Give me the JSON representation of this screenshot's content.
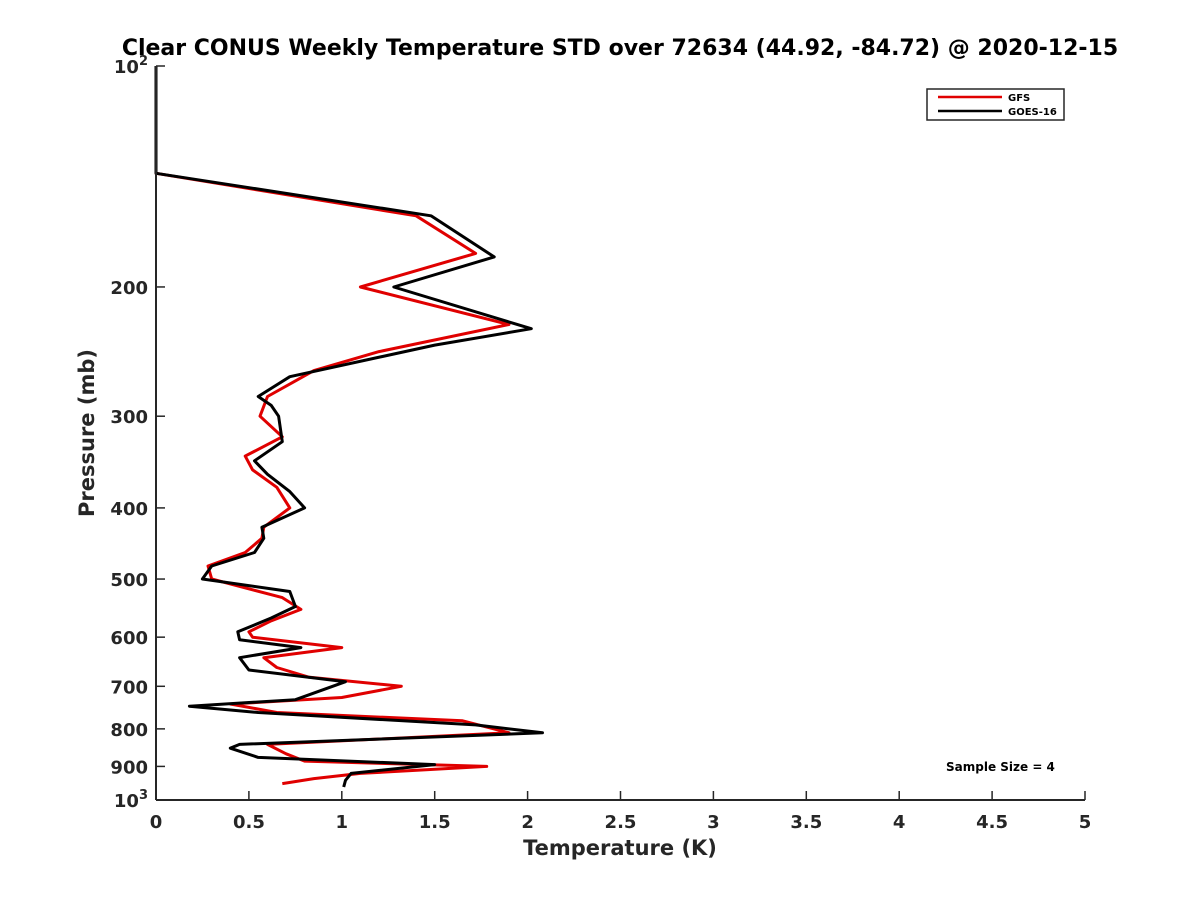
{
  "chart_data": {
    "type": "line",
    "title": "Clear CONUS Weekly Temperature STD over 72634 (44.92, -84.72) @ 2020-12-15",
    "xlabel": "Temperature (K)",
    "ylabel": "Pressure (mb)",
    "xlim": [
      0,
      5
    ],
    "ylim": [
      100,
      1000
    ],
    "y_scale": "log",
    "y_reversed": true,
    "grid": false,
    "legend_position": "top-right",
    "x_ticks": [
      "0",
      "0.5",
      "1",
      "1.5",
      "2",
      "2.5",
      "3",
      "3.5",
      "4",
      "4.5",
      "5"
    ],
    "y_ticks": [
      {
        "value": 100,
        "base": "10",
        "exp": "2"
      },
      {
        "value": 200,
        "label": "200"
      },
      {
        "value": 300,
        "label": "300"
      },
      {
        "value": 400,
        "label": "400"
      },
      {
        "value": 500,
        "label": "500"
      },
      {
        "value": 600,
        "label": "600"
      },
      {
        "value": 700,
        "label": "700"
      },
      {
        "value": 800,
        "label": "800"
      },
      {
        "value": 900,
        "label": "900"
      },
      {
        "value": 1000,
        "base": "10",
        "exp": "3"
      }
    ],
    "annotation": "Sample Size = 4",
    "series": [
      {
        "name": "GFS",
        "color": "#e00000",
        "points": [
          [
            0.0,
            100
          ],
          [
            0.0,
            140
          ],
          [
            1.4,
            160
          ],
          [
            1.72,
            180
          ],
          [
            1.1,
            200
          ],
          [
            1.9,
            225
          ],
          [
            1.2,
            245
          ],
          [
            0.85,
            260
          ],
          [
            0.6,
            282
          ],
          [
            0.56,
            300
          ],
          [
            0.68,
            320
          ],
          [
            0.48,
            340
          ],
          [
            0.52,
            355
          ],
          [
            0.65,
            375
          ],
          [
            0.72,
            400
          ],
          [
            0.58,
            425
          ],
          [
            0.57,
            440
          ],
          [
            0.48,
            460
          ],
          [
            0.28,
            480
          ],
          [
            0.3,
            500
          ],
          [
            0.68,
            530
          ],
          [
            0.78,
            550
          ],
          [
            0.62,
            570
          ],
          [
            0.5,
            590
          ],
          [
            0.52,
            600
          ],
          [
            1.0,
            620
          ],
          [
            0.58,
            640
          ],
          [
            0.65,
            660
          ],
          [
            0.82,
            680
          ],
          [
            1.32,
            700
          ],
          [
            1.0,
            725
          ],
          [
            0.4,
            740
          ],
          [
            0.65,
            760
          ],
          [
            1.65,
            780
          ],
          [
            1.9,
            810
          ],
          [
            0.6,
            840
          ],
          [
            0.7,
            865
          ],
          [
            0.8,
            885
          ],
          [
            1.78,
            900
          ],
          [
            1.1,
            920
          ],
          [
            0.85,
            935
          ],
          [
            0.68,
            950
          ]
        ]
      },
      {
        "name": "GOES-16",
        "color": "#000000",
        "points": [
          [
            0.0,
            100
          ],
          [
            0.0,
            140
          ],
          [
            1.48,
            160
          ],
          [
            1.82,
            182
          ],
          [
            1.28,
            200
          ],
          [
            2.02,
            228
          ],
          [
            1.5,
            240
          ],
          [
            0.72,
            265
          ],
          [
            0.55,
            282
          ],
          [
            0.62,
            290
          ],
          [
            0.66,
            300
          ],
          [
            0.68,
            325
          ],
          [
            0.53,
            345
          ],
          [
            0.6,
            360
          ],
          [
            0.72,
            380
          ],
          [
            0.8,
            400
          ],
          [
            0.57,
            425
          ],
          [
            0.58,
            440
          ],
          [
            0.53,
            460
          ],
          [
            0.3,
            480
          ],
          [
            0.25,
            500
          ],
          [
            0.72,
            520
          ],
          [
            0.75,
            545
          ],
          [
            0.62,
            565
          ],
          [
            0.44,
            590
          ],
          [
            0.45,
            605
          ],
          [
            0.78,
            620
          ],
          [
            0.45,
            640
          ],
          [
            0.5,
            665
          ],
          [
            1.02,
            690
          ],
          [
            0.75,
            730
          ],
          [
            0.18,
            745
          ],
          [
            0.55,
            760
          ],
          [
            1.72,
            790
          ],
          [
            2.08,
            810
          ],
          [
            0.45,
            840
          ],
          [
            0.4,
            850
          ],
          [
            0.55,
            875
          ],
          [
            1.5,
            895
          ],
          [
            1.05,
            920
          ],
          [
            1.02,
            940
          ],
          [
            1.01,
            960
          ]
        ]
      }
    ]
  }
}
